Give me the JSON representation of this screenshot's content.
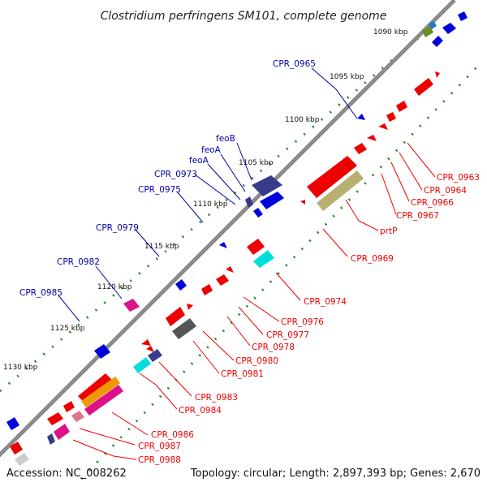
{
  "title": "Clostridium perfringens SM101, complete genome",
  "footer": {
    "accession": "Accession: NC_008262",
    "summary": "Topology: circular; Length: 2,897,393 bp; Genes: 2,670"
  },
  "colors": {
    "forward_label": "#0000aa",
    "reverse_label": "#ff0000",
    "backbone": "#8a8a8a",
    "tick": "#2a8a2a"
  },
  "ruler": [
    "1090 kbp",
    "1095 kbp",
    "1100 kbp",
    "1105 kbp",
    "1110 kbp",
    "1115 kbp",
    "1120 kbp",
    "1125 kbp",
    "1130 kbp"
  ],
  "forward_labels": [
    "CPR_0965",
    "feoB",
    "feoA",
    "feoA",
    "CPR_0973",
    "CPR_0975",
    "CPR_0979",
    "CPR_0982",
    "CPR_0985"
  ],
  "reverse_labels": [
    "CPR_0963",
    "CPR_0964",
    "CPR_0966",
    "CPR_0967",
    "prtP",
    "CPR_0969",
    "CPR_0974",
    "CPR_0976",
    "CPR_0977",
    "CPR_0978",
    "CPR_0980",
    "CPR_0981",
    "CPR_0983",
    "CPR_0984",
    "CPR_0986",
    "CPR_0987",
    "CPR_0988"
  ]
}
